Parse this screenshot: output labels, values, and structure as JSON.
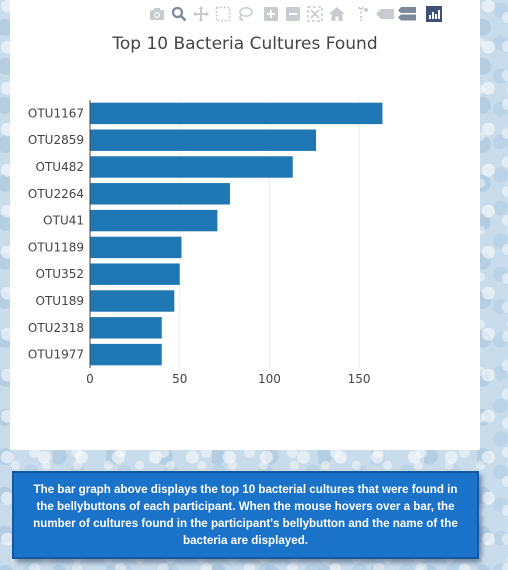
{
  "modebar": {
    "buttons": [
      {
        "icon": "camera-icon"
      },
      {
        "icon": "zoom-icon"
      },
      {
        "icon": "pan-icon"
      },
      {
        "icon": "box-select-icon"
      },
      {
        "icon": "lasso-select-icon"
      },
      {
        "icon": "zoom-in-icon"
      },
      {
        "icon": "zoom-out-icon"
      },
      {
        "icon": "autoscale-icon"
      },
      {
        "icon": "home-icon"
      },
      {
        "icon": "spike-lines-icon"
      },
      {
        "icon": "hover-closest-icon"
      },
      {
        "icon": "hover-compare-icon"
      },
      {
        "icon": "plotly-logo-icon"
      }
    ]
  },
  "chart_data": {
    "type": "bar",
    "orientation": "horizontal",
    "title": "Top 10 Bacteria Cultures Found",
    "categories": [
      "OTU1167",
      "OTU2859",
      "OTU482",
      "OTU2264",
      "OTU41",
      "OTU1189",
      "OTU352",
      "OTU189",
      "OTU2318",
      "OTU1977"
    ],
    "values": [
      163,
      126,
      113,
      78,
      71,
      51,
      50,
      47,
      40,
      40
    ],
    "xlim": [
      0,
      170
    ],
    "xticks": [
      0,
      50,
      100,
      150
    ],
    "grid": "vertical",
    "bar_color": "#1f77b4"
  },
  "description": {
    "text": "The bar graph above displays the top 10 bacterial cultures that were found in the bellybuttons of each participant. When the mouse hovers over a bar, the number of cultures found in the participant's bellybutton and the name of the bacteria are displayed."
  }
}
